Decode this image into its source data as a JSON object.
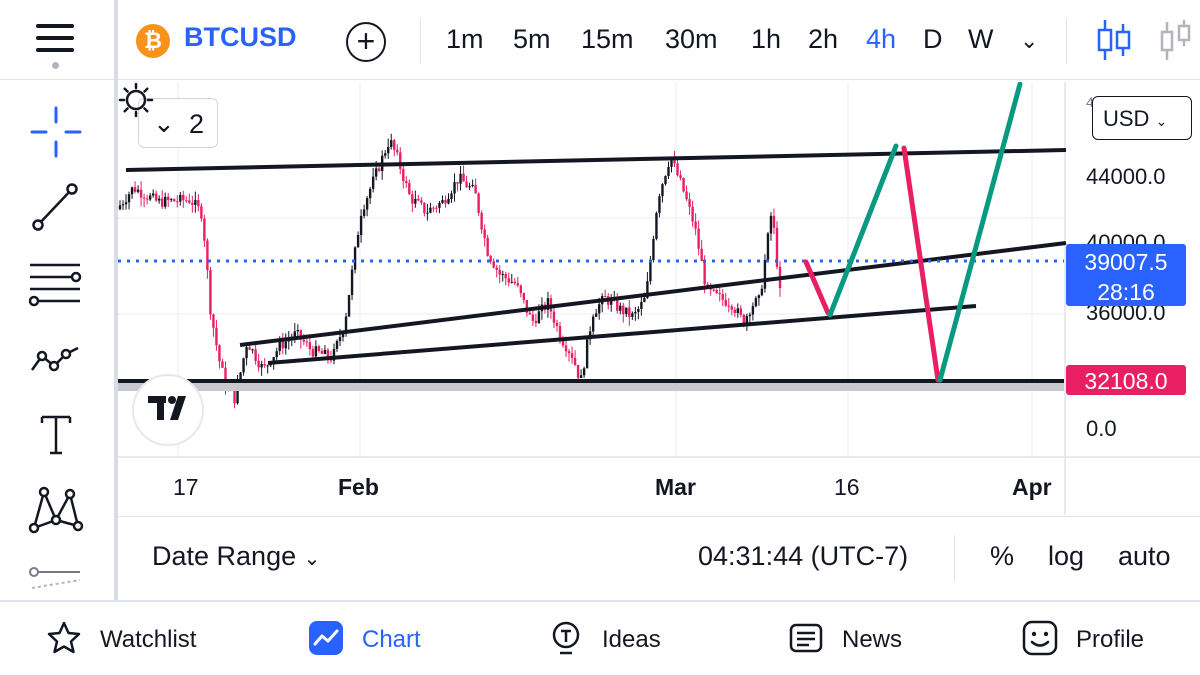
{
  "toolbar": {
    "coin_glyph": "₿",
    "symbol": "BTCUSD",
    "add_glyph": "+",
    "intervals": [
      "1m",
      "5m",
      "15m",
      "30m",
      "1h",
      "2h",
      "4h",
      "D",
      "W"
    ],
    "active_interval": "4h",
    "more_glyph": "⌄",
    "icons": [
      "menu-icon",
      "bitcoin-icon",
      "add-symbol-icon",
      "chevron-down-icon",
      "candlestick-icon",
      "candlestick-icon"
    ]
  },
  "left_tools": [
    "crosshair-icon",
    "trend-line-icon",
    "fib-retracement-icon",
    "pattern-icon",
    "text-icon",
    "xabcd-pattern-icon",
    "more-tools-icon"
  ],
  "chart": {
    "legend_chevron": "⌄",
    "legend_count": "2",
    "currency": "USD",
    "price_axis": [
      "44000.0",
      "40000.0",
      "36000.0",
      "0.0"
    ],
    "price_axis_partial_top": "4",
    "current_price": "39007.5",
    "countdown": "28:16",
    "level_price": "32108.0",
    "date_axis": [
      "17",
      "Feb",
      "Mar",
      "16",
      "Apr"
    ],
    "colors": {
      "accent": "#2962ff",
      "current_price_tag": "#2962ff",
      "level_tag": "#e91e63",
      "up_candle": "#131722",
      "down_candle": "#e91e63",
      "projection_up": "#089981",
      "projection_down": "#e91e63"
    }
  },
  "chart_data": {
    "type": "candlestick",
    "x_ticks": [
      "17",
      "Feb",
      "Mar",
      "16",
      "Apr"
    ],
    "y_ticks": [
      44000,
      40000,
      36000,
      0
    ],
    "current_price": 39007.5,
    "marked_level": 32108.0,
    "close_path": [
      [
        0,
        42700
      ],
      [
        0.02,
        43600
      ],
      [
        0.05,
        43000
      ],
      [
        0.09,
        43100
      ],
      [
        0.105,
        42500
      ],
      [
        0.115,
        38500
      ],
      [
        0.125,
        36500
      ],
      [
        0.135,
        35200
      ],
      [
        0.145,
        34800
      ],
      [
        0.16,
        37200
      ],
      [
        0.18,
        36000
      ],
      [
        0.2,
        37000
      ],
      [
        0.22,
        37500
      ],
      [
        0.24,
        36800
      ],
      [
        0.265,
        36500
      ],
      [
        0.28,
        38000
      ],
      [
        0.3,
        42600
      ],
      [
        0.32,
        44300
      ],
      [
        0.335,
        45600
      ],
      [
        0.345,
        44800
      ],
      [
        0.36,
        43200
      ],
      [
        0.38,
        42600
      ],
      [
        0.4,
        43000
      ],
      [
        0.42,
        44000
      ],
      [
        0.44,
        43400
      ],
      [
        0.455,
        41000
      ],
      [
        0.47,
        40000
      ],
      [
        0.49,
        39600
      ],
      [
        0.51,
        38000
      ],
      [
        0.53,
        38800
      ],
      [
        0.545,
        37400
      ],
      [
        0.56,
        36600
      ],
      [
        0.57,
        35500
      ],
      [
        0.585,
        38400
      ],
      [
        0.6,
        39000
      ],
      [
        0.62,
        38500
      ],
      [
        0.635,
        38200
      ],
      [
        0.65,
        39000
      ],
      [
        0.665,
        43200
      ],
      [
        0.68,
        44900
      ],
      [
        0.695,
        43600
      ],
      [
        0.71,
        42000
      ],
      [
        0.725,
        39300
      ],
      [
        0.74,
        39000
      ],
      [
        0.755,
        38800
      ],
      [
        0.77,
        38000
      ],
      [
        0.78,
        38700
      ],
      [
        0.79,
        38900
      ],
      [
        0.805,
        42700
      ],
      [
        0.815,
        39200
      ]
    ]
  },
  "infobar": {
    "date_range": "Date Range",
    "date_range_chevron": "⌄",
    "clock": "04:31:44 (UTC-7)",
    "percent": "%",
    "log": "log",
    "auto": "auto"
  },
  "nav": {
    "watchlist": "Watchlist",
    "chart": "Chart",
    "ideas": "Ideas",
    "news": "News",
    "profile": "Profile"
  }
}
